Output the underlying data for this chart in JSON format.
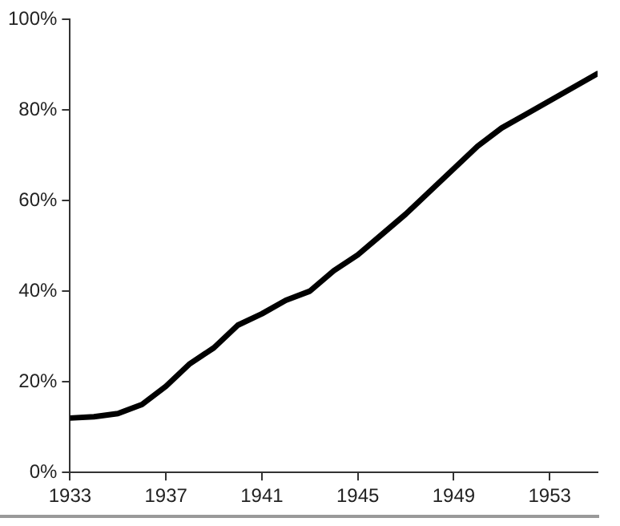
{
  "chart_data": {
    "type": "line",
    "x": [
      1933,
      1934,
      1935,
      1936,
      1937,
      1938,
      1939,
      1940,
      1941,
      1942,
      1943,
      1944,
      1945,
      1946,
      1947,
      1948,
      1949,
      1950,
      1951,
      1952,
      1953,
      1954,
      1955
    ],
    "series": [
      {
        "color": "#000000",
        "values": [
          12,
          12.3,
          13,
          15,
          19,
          24,
          27.5,
          32.5,
          35,
          38,
          40,
          44.5,
          48,
          52.5,
          57,
          62,
          67,
          72,
          76,
          79,
          82,
          85,
          88
        ]
      }
    ],
    "xlim": [
      1933,
      1955
    ],
    "xticks": [
      1933,
      1937,
      1941,
      1945,
      1949,
      1953
    ],
    "ylim": [
      0,
      100
    ],
    "yticks": [
      {
        "value": 0,
        "label": "0%"
      },
      {
        "value": 20,
        "label": "20%"
      },
      {
        "value": 40,
        "label": "40%"
      },
      {
        "value": 60,
        "label": "60%"
      },
      {
        "value": 80,
        "label": "80%"
      },
      {
        "value": 100,
        "label": "100%"
      }
    ],
    "grid": false,
    "legend": false,
    "marker": "none",
    "line_style": "solid"
  }
}
